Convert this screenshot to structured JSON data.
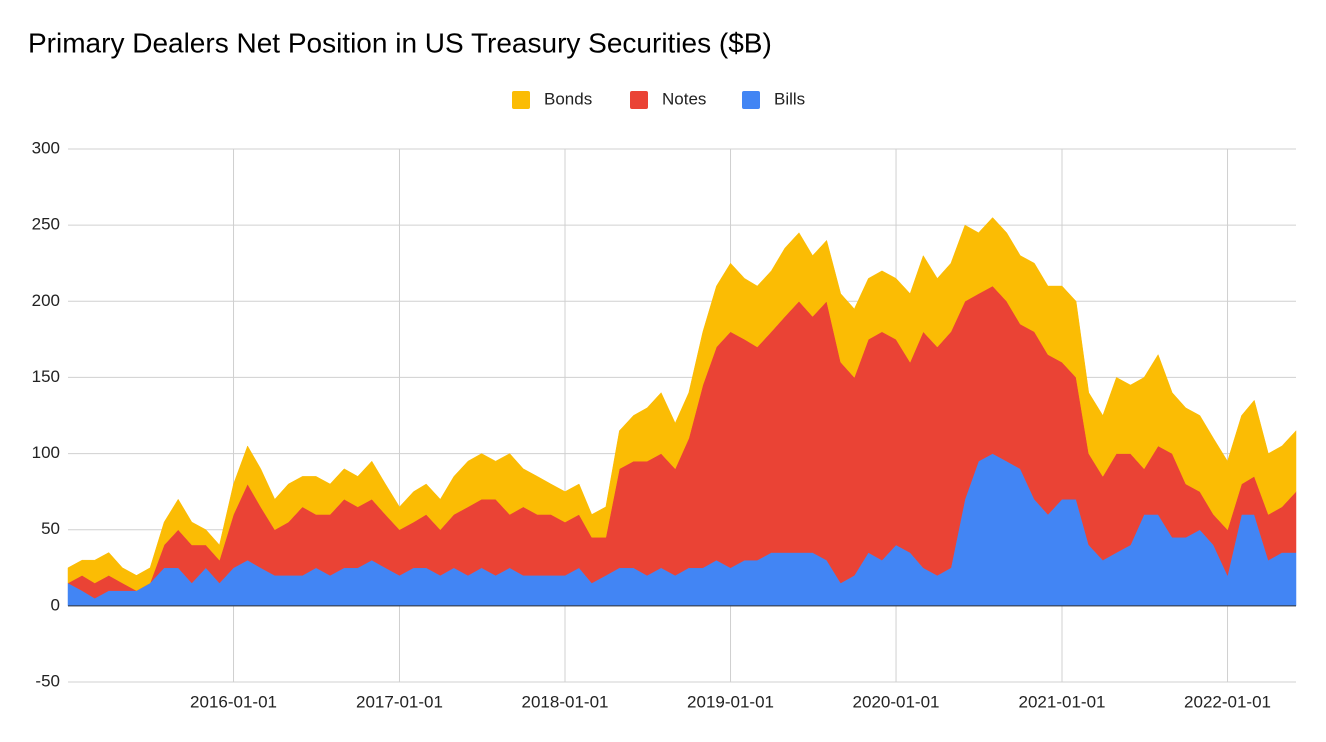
{
  "chart_data": {
    "type": "stacked_area",
    "title": "Primary Dealers Net Position in US Treasury Securities ($B)",
    "x": [
      "2015-01-01",
      "2015-02-01",
      "2015-03-01",
      "2015-04-01",
      "2015-05-01",
      "2015-06-01",
      "2015-07-01",
      "2015-08-01",
      "2015-09-01",
      "2015-10-01",
      "2015-11-01",
      "2015-12-01",
      "2016-01-01",
      "2016-02-01",
      "2016-03-01",
      "2016-04-01",
      "2016-05-01",
      "2016-06-01",
      "2016-07-01",
      "2016-08-01",
      "2016-09-01",
      "2016-10-01",
      "2016-11-01",
      "2016-12-01",
      "2017-01-01",
      "2017-02-01",
      "2017-03-01",
      "2017-04-01",
      "2017-05-01",
      "2017-06-01",
      "2017-07-01",
      "2017-08-01",
      "2017-09-01",
      "2017-10-01",
      "2017-11-01",
      "2017-12-01",
      "2018-01-01",
      "2018-02-01",
      "2018-03-01",
      "2018-04-01",
      "2018-05-01",
      "2018-06-01",
      "2018-07-01",
      "2018-08-01",
      "2018-09-01",
      "2018-10-01",
      "2018-11-01",
      "2018-12-01",
      "2019-01-01",
      "2019-02-01",
      "2019-03-01",
      "2019-04-01",
      "2019-05-01",
      "2019-06-01",
      "2019-07-01",
      "2019-08-01",
      "2019-09-01",
      "2019-10-01",
      "2019-11-01",
      "2019-12-01",
      "2020-01-01",
      "2020-02-01",
      "2020-03-01",
      "2020-04-01",
      "2020-05-01",
      "2020-06-01",
      "2020-07-01",
      "2020-08-01",
      "2020-09-01",
      "2020-10-01",
      "2020-11-01",
      "2020-12-01",
      "2021-01-01",
      "2021-02-01",
      "2021-03-01",
      "2021-04-01",
      "2021-05-01",
      "2021-06-01",
      "2021-07-01",
      "2021-08-01",
      "2021-09-01",
      "2021-10-01",
      "2021-11-01",
      "2021-12-01",
      "2022-01-01",
      "2022-02-01",
      "2022-03-01",
      "2022-04-01",
      "2022-05-01",
      "2022-06-01"
    ],
    "series": [
      {
        "name": "Bonds",
        "color": "#fbbc04",
        "values": [
          10,
          10,
          15,
          15,
          10,
          10,
          10,
          15,
          20,
          15,
          10,
          10,
          20,
          25,
          25,
          20,
          25,
          20,
          25,
          20,
          20,
          20,
          25,
          20,
          15,
          20,
          20,
          20,
          25,
          30,
          30,
          25,
          40,
          25,
          25,
          20,
          20,
          20,
          15,
          20,
          25,
          30,
          35,
          40,
          30,
          30,
          35,
          40,
          45,
          40,
          40,
          40,
          45,
          45,
          40,
          40,
          45,
          45,
          40,
          40,
          40,
          45,
          50,
          45,
          45,
          50,
          40,
          45,
          45,
          45,
          45,
          45,
          50,
          50,
          40,
          40,
          50,
          45,
          60,
          60,
          40,
          50,
          50,
          50,
          45,
          45,
          50,
          40,
          40,
          40
        ]
      },
      {
        "name": "Notes",
        "color": "#ea4335",
        "values": [
          0,
          10,
          10,
          10,
          5,
          0,
          0,
          15,
          25,
          25,
          15,
          15,
          35,
          50,
          40,
          30,
          35,
          45,
          35,
          40,
          45,
          40,
          40,
          35,
          30,
          30,
          35,
          30,
          35,
          45,
          45,
          50,
          35,
          45,
          40,
          40,
          35,
          35,
          30,
          25,
          65,
          70,
          75,
          75,
          70,
          85,
          120,
          140,
          155,
          145,
          140,
          145,
          155,
          165,
          155,
          170,
          145,
          130,
          140,
          150,
          135,
          125,
          155,
          150,
          155,
          130,
          110,
          110,
          105,
          95,
          110,
          105,
          90,
          80,
          60,
          55,
          65,
          60,
          30,
          45,
          55,
          35,
          25,
          20,
          30,
          20,
          25,
          30,
          30,
          40
        ]
      },
      {
        "name": "Bills",
        "color": "#4285f4",
        "values": [
          15,
          10,
          5,
          10,
          10,
          10,
          15,
          25,
          25,
          15,
          25,
          15,
          25,
          30,
          25,
          20,
          20,
          20,
          25,
          20,
          25,
          25,
          30,
          25,
          20,
          25,
          25,
          20,
          25,
          20,
          25,
          20,
          25,
          20,
          20,
          20,
          20,
          25,
          15,
          20,
          25,
          25,
          20,
          25,
          20,
          25,
          25,
          30,
          25,
          30,
          30,
          35,
          35,
          35,
          35,
          30,
          15,
          20,
          35,
          30,
          40,
          35,
          25,
          20,
          25,
          70,
          95,
          100,
          95,
          90,
          70,
          60,
          70,
          70,
          40,
          30,
          35,
          40,
          60,
          60,
          45,
          45,
          50,
          40,
          20,
          60,
          60,
          30,
          35,
          35
        ]
      }
    ],
    "xlim": [
      "2015-01-01",
      "2022-06-01"
    ],
    "xticks": [
      "2016-01-01",
      "2017-01-01",
      "2018-01-01",
      "2019-01-01",
      "2020-01-01",
      "2021-01-01",
      "2022-01-01"
    ],
    "ylim": [
      -50,
      300
    ],
    "yticks": [
      -50,
      0,
      50,
      100,
      150,
      200,
      250,
      300
    ],
    "grid": true,
    "legend": "top"
  }
}
